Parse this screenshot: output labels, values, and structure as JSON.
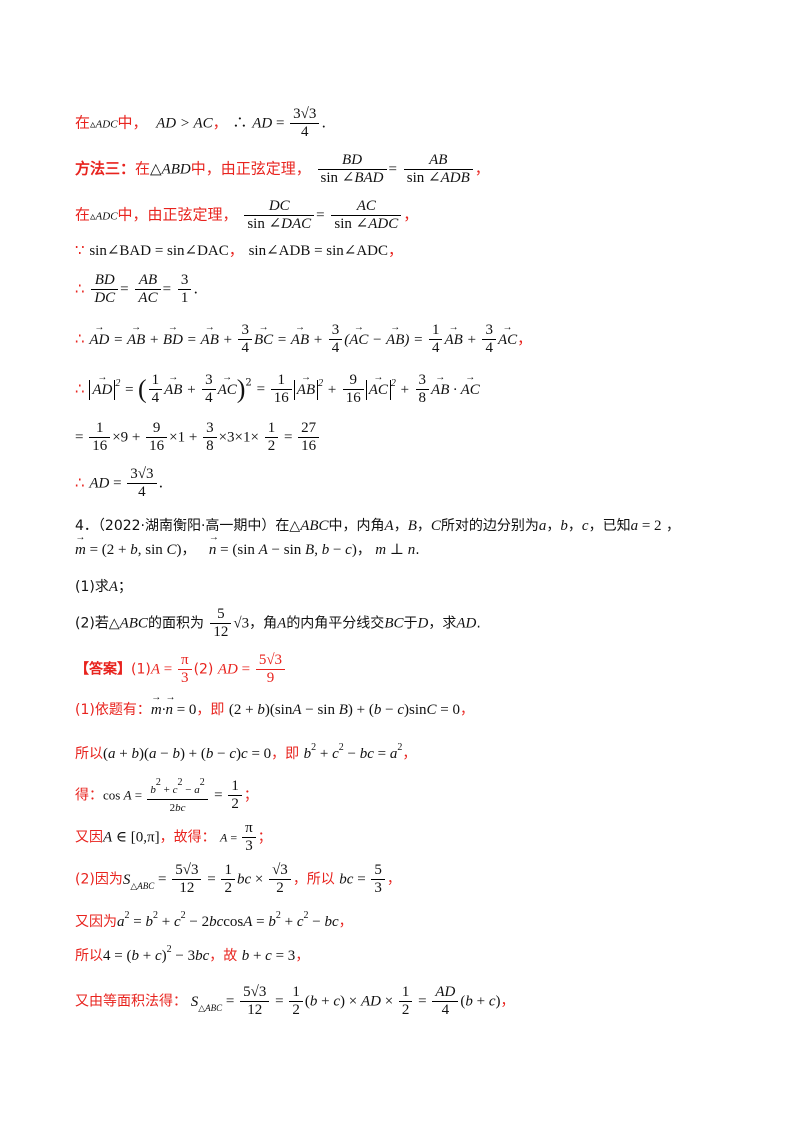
{
  "p1": {
    "a": "在",
    "b": "中，",
    "c": "，",
    "d": "."
  },
  "p2": {
    "method": "方法三：",
    "a": "在",
    "b": "中，由正弦定理，",
    "c": "，"
  },
  "p3": {
    "a": "在",
    "b": "中，由正弦定理，",
    "c": "，"
  },
  "p4": {
    "because": "∵",
    "eq1": "sin∠BAD = sin∠DAC",
    "sep": "，",
    "eq2": "sin∠ADB = sin∠ADC",
    "end": "，"
  },
  "p5": {
    "therefore": "∴",
    "end": "."
  },
  "p6": {
    "therefore": "∴",
    "end": "，"
  },
  "p7": {
    "therefore": "∴"
  },
  "p8": {
    "result": "27",
    "den": "16"
  },
  "p9": {
    "therefore": "∴",
    "end": "."
  },
  "problem": {
    "num": "4．（2022·湖南衡阳·高一期中）在△",
    "abc": "ABC",
    "text1": "中，内角",
    "text2": "所对的边分别为",
    "text3": "，已知",
    "line2": "，",
    "perp": "m ⊥ n",
    "q1": "(1)求",
    "q1b": "；",
    "q2a": "(2)若△",
    "q2b": "的面积为",
    "q2c": "，角",
    "q2d": "的内角平分线交",
    "q2e": "于",
    "q2f": "，求"
  },
  "answer": {
    "label": "【答案】",
    "p1": "(1)",
    "p2": "(2)",
    "s1a": "(1)依题有：",
    "s1b": "，即",
    "s1c": "，",
    "s2a": "所以",
    "s2b": "，即",
    "s2c": "，",
    "s3a": "得：",
    "s3b": "；",
    "s4a": "又因",
    "s4b": "，故得：",
    "s4c": "；",
    "s5a": "(2)因为",
    "s5b": "，所以",
    "s5c": "，",
    "s6a": "又因为",
    "s6b": "，",
    "s7a": "所以",
    "s7b": "，故",
    "s7c": "，",
    "s8a": "又由等面积法得：",
    "s8b": "，"
  }
}
